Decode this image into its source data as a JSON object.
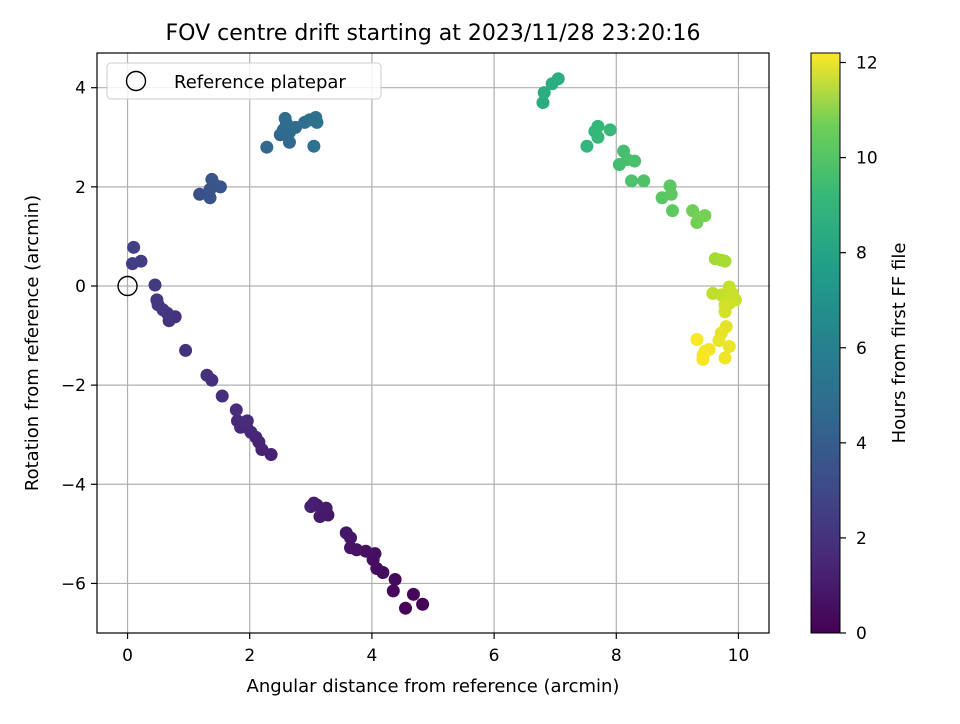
{
  "chart_data": {
    "type": "scatter",
    "title": "FOV centre drift starting at 2023/11/28 23:20:16",
    "xlabel": "Angular distance from reference (arcmin)",
    "ylabel": "Rotation from reference (arcmin)",
    "xlim": [
      -0.5,
      10.5
    ],
    "ylim": [
      -7.0,
      4.7
    ],
    "xticks": [
      0,
      2,
      4,
      6,
      8,
      10
    ],
    "yticks": [
      -6,
      -4,
      -2,
      0,
      2,
      4
    ],
    "xtick_labels": [
      "0",
      "2",
      "4",
      "6",
      "8",
      "10"
    ],
    "ytick_labels": [
      "−6",
      "−4",
      "−2",
      "0",
      "2",
      "4"
    ],
    "grid": true,
    "legend": {
      "position": "top-left",
      "entries": [
        "Reference platepar"
      ]
    },
    "reference_point": {
      "x": 0,
      "y": 0
    },
    "colorbar": {
      "label": "Hours from first FF file",
      "min": 0,
      "max": 12.2,
      "ticks": [
        0,
        2,
        4,
        6,
        8,
        10,
        12
      ],
      "tick_labels": [
        "0",
        "2",
        "4",
        "6",
        "8",
        "10",
        "12"
      ],
      "colormap": "viridis"
    },
    "points": [
      {
        "x": 4.55,
        "y": -6.5,
        "h": 0.1
      },
      {
        "x": 4.83,
        "y": -6.42,
        "h": 0.15
      },
      {
        "x": 4.68,
        "y": -6.22,
        "h": 0.2
      },
      {
        "x": 4.35,
        "y": -6.15,
        "h": 0.25
      },
      {
        "x": 4.38,
        "y": -5.92,
        "h": 0.3
      },
      {
        "x": 4.18,
        "y": -5.78,
        "h": 0.35
      },
      {
        "x": 4.08,
        "y": -5.7,
        "h": 0.4
      },
      {
        "x": 4.02,
        "y": -5.52,
        "h": 0.45
      },
      {
        "x": 4.05,
        "y": -5.4,
        "h": 0.5
      },
      {
        "x": 3.9,
        "y": -5.35,
        "h": 0.55
      },
      {
        "x": 3.75,
        "y": -5.32,
        "h": 0.6
      },
      {
        "x": 3.65,
        "y": -5.28,
        "h": 0.65
      },
      {
        "x": 3.65,
        "y": -5.08,
        "h": 0.7
      },
      {
        "x": 3.58,
        "y": -4.98,
        "h": 0.75
      },
      {
        "x": 3.28,
        "y": -4.62,
        "h": 0.8
      },
      {
        "x": 3.15,
        "y": -4.65,
        "h": 0.85
      },
      {
        "x": 3.25,
        "y": -4.48,
        "h": 0.9
      },
      {
        "x": 3.1,
        "y": -4.42,
        "h": 0.95
      },
      {
        "x": 3.05,
        "y": -4.38,
        "h": 1.0
      },
      {
        "x": 3.0,
        "y": -4.45,
        "h": 1.05
      },
      {
        "x": 2.35,
        "y": -3.4,
        "h": 1.1
      },
      {
        "x": 2.2,
        "y": -3.3,
        "h": 1.15
      },
      {
        "x": 2.15,
        "y": -3.15,
        "h": 1.2
      },
      {
        "x": 2.1,
        "y": -3.05,
        "h": 1.25
      },
      {
        "x": 2.02,
        "y": -2.95,
        "h": 1.3
      },
      {
        "x": 1.95,
        "y": -2.85,
        "h": 1.35
      },
      {
        "x": 1.85,
        "y": -2.85,
        "h": 1.4
      },
      {
        "x": 1.8,
        "y": -2.72,
        "h": 1.45
      },
      {
        "x": 1.96,
        "y": -2.72,
        "h": 1.5
      },
      {
        "x": 1.78,
        "y": -2.5,
        "h": 1.55
      },
      {
        "x": 1.55,
        "y": -2.22,
        "h": 1.6
      },
      {
        "x": 1.38,
        "y": -1.9,
        "h": 1.65
      },
      {
        "x": 1.3,
        "y": -1.8,
        "h": 1.7
      },
      {
        "x": 0.95,
        "y": -1.3,
        "h": 1.75
      },
      {
        "x": 0.78,
        "y": -0.62,
        "h": 1.8
      },
      {
        "x": 0.68,
        "y": -0.7,
        "h": 1.85
      },
      {
        "x": 0.65,
        "y": -0.55,
        "h": 1.9
      },
      {
        "x": 0.58,
        "y": -0.48,
        "h": 1.95
      },
      {
        "x": 0.5,
        "y": -0.38,
        "h": 2.0
      },
      {
        "x": 0.48,
        "y": -0.28,
        "h": 2.05
      },
      {
        "x": 0.45,
        "y": 0.02,
        "h": 2.1
      },
      {
        "x": 0.22,
        "y": 0.5,
        "h": 2.2
      },
      {
        "x": 0.08,
        "y": 0.45,
        "h": 2.25
      },
      {
        "x": 0.1,
        "y": 0.78,
        "h": 2.3
      },
      {
        "x": 1.18,
        "y": 1.85,
        "h": 3.0
      },
      {
        "x": 1.35,
        "y": 1.78,
        "h": 3.05
      },
      {
        "x": 1.35,
        "y": 1.95,
        "h": 3.1
      },
      {
        "x": 1.42,
        "y": 2.05,
        "h": 3.15
      },
      {
        "x": 1.52,
        "y": 2.0,
        "h": 3.2
      },
      {
        "x": 1.38,
        "y": 2.15,
        "h": 3.25
      },
      {
        "x": 2.28,
        "y": 2.8,
        "h": 4.0
      },
      {
        "x": 2.65,
        "y": 2.9,
        "h": 4.05
      },
      {
        "x": 2.5,
        "y": 3.05,
        "h": 4.1
      },
      {
        "x": 2.55,
        "y": 3.15,
        "h": 4.15
      },
      {
        "x": 2.65,
        "y": 3.1,
        "h": 4.2
      },
      {
        "x": 2.75,
        "y": 3.2,
        "h": 4.25
      },
      {
        "x": 2.6,
        "y": 3.28,
        "h": 4.3
      },
      {
        "x": 2.58,
        "y": 3.38,
        "h": 4.35
      },
      {
        "x": 2.9,
        "y": 3.3,
        "h": 4.4
      },
      {
        "x": 2.98,
        "y": 3.35,
        "h": 4.45
      },
      {
        "x": 3.08,
        "y": 3.4,
        "h": 4.5
      },
      {
        "x": 3.1,
        "y": 3.3,
        "h": 4.55
      },
      {
        "x": 3.05,
        "y": 2.82,
        "h": 4.6
      },
      {
        "x": 6.8,
        "y": 3.7,
        "h": 7.5
      },
      {
        "x": 6.82,
        "y": 3.9,
        "h": 7.55
      },
      {
        "x": 6.95,
        "y": 4.08,
        "h": 7.6
      },
      {
        "x": 7.05,
        "y": 4.18,
        "h": 7.65
      },
      {
        "x": 7.52,
        "y": 2.82,
        "h": 8.0
      },
      {
        "x": 7.65,
        "y": 3.12,
        "h": 8.05
      },
      {
        "x": 7.7,
        "y": 3.22,
        "h": 8.1
      },
      {
        "x": 7.7,
        "y": 3.0,
        "h": 8.15
      },
      {
        "x": 7.9,
        "y": 3.15,
        "h": 8.2
      },
      {
        "x": 8.05,
        "y": 2.45,
        "h": 8.5
      },
      {
        "x": 8.12,
        "y": 2.72,
        "h": 8.55
      },
      {
        "x": 8.18,
        "y": 2.55,
        "h": 8.6
      },
      {
        "x": 8.3,
        "y": 2.52,
        "h": 8.65
      },
      {
        "x": 8.25,
        "y": 2.12,
        "h": 8.7
      },
      {
        "x": 8.45,
        "y": 2.12,
        "h": 8.75
      },
      {
        "x": 8.75,
        "y": 1.78,
        "h": 9.0
      },
      {
        "x": 8.88,
        "y": 2.02,
        "h": 9.05
      },
      {
        "x": 8.9,
        "y": 1.85,
        "h": 9.1
      },
      {
        "x": 8.92,
        "y": 1.52,
        "h": 9.15
      },
      {
        "x": 9.25,
        "y": 1.52,
        "h": 9.5
      },
      {
        "x": 9.32,
        "y": 1.28,
        "h": 9.55
      },
      {
        "x": 9.35,
        "y": 1.38,
        "h": 9.6
      },
      {
        "x": 9.45,
        "y": 1.42,
        "h": 9.65
      },
      {
        "x": 9.62,
        "y": 0.55,
        "h": 10.5
      },
      {
        "x": 9.72,
        "y": 0.52,
        "h": 10.55
      },
      {
        "x": 9.78,
        "y": 0.5,
        "h": 10.6
      },
      {
        "x": 9.58,
        "y": -0.15,
        "h": 11.0
      },
      {
        "x": 9.72,
        "y": -0.18,
        "h": 11.05
      },
      {
        "x": 9.8,
        "y": -0.2,
        "h": 11.1
      },
      {
        "x": 9.85,
        "y": -0.02,
        "h": 11.15
      },
      {
        "x": 9.9,
        "y": -0.15,
        "h": 11.2
      },
      {
        "x": 9.95,
        "y": -0.28,
        "h": 11.25
      },
      {
        "x": 9.85,
        "y": -0.35,
        "h": 11.3
      },
      {
        "x": 9.78,
        "y": -0.38,
        "h": 11.35
      },
      {
        "x": 9.78,
        "y": -0.52,
        "h": 11.4
      },
      {
        "x": 9.8,
        "y": -0.82,
        "h": 11.7
      },
      {
        "x": 9.72,
        "y": -0.95,
        "h": 11.75
      },
      {
        "x": 9.68,
        "y": -1.1,
        "h": 11.8
      },
      {
        "x": 9.85,
        "y": -1.22,
        "h": 11.85
      },
      {
        "x": 9.78,
        "y": -1.45,
        "h": 11.9
      },
      {
        "x": 9.52,
        "y": -1.28,
        "h": 11.95
      },
      {
        "x": 9.45,
        "y": -1.32,
        "h": 12.0
      },
      {
        "x": 9.42,
        "y": -1.4,
        "h": 12.05
      },
      {
        "x": 9.42,
        "y": -1.48,
        "h": 12.1
      },
      {
        "x": 9.32,
        "y": -1.08,
        "h": 12.15
      }
    ]
  }
}
